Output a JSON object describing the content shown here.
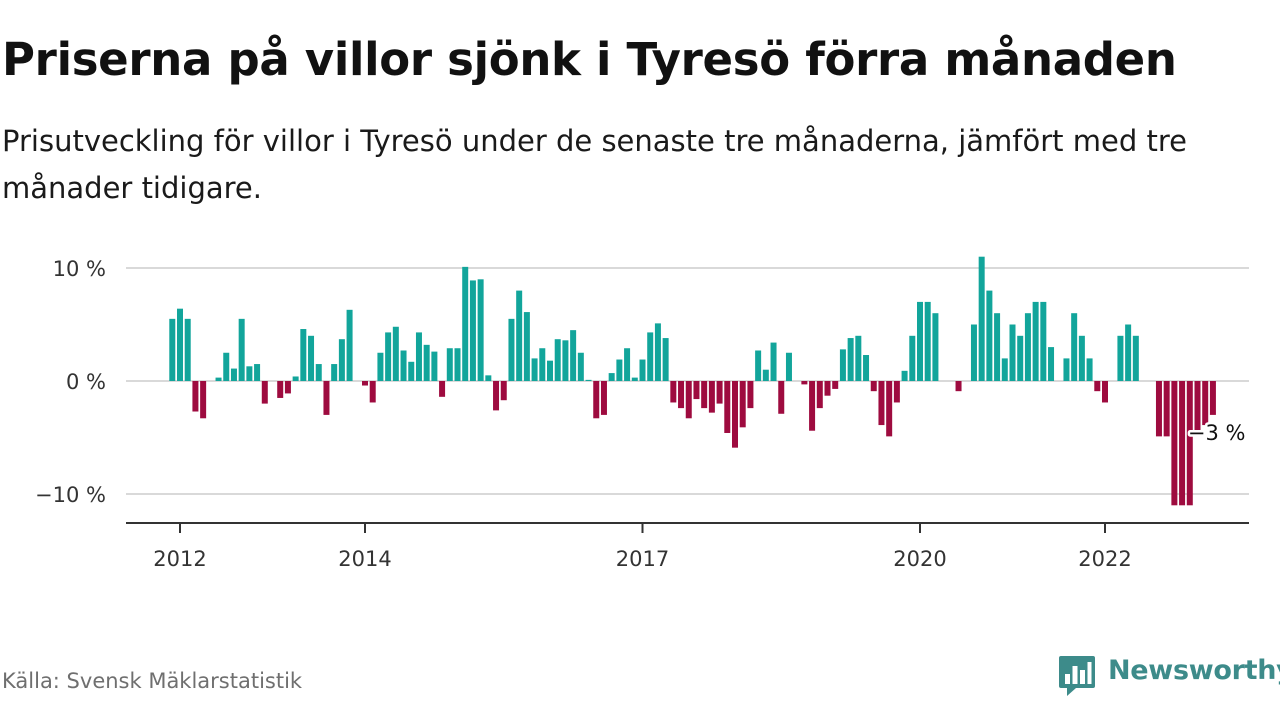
{
  "title": "Priserna på villor sjönk i Tyresö förra månaden",
  "subtitle": "Prisutveckling för villor i Tyresö under de senaste tre månaderna, jämfört med tre månader tidigare.",
  "source": "Källa: Svensk Mäklarstatistik",
  "logo": {
    "text": "Newsworthy",
    "icon": "bar-chart-speech-bubble-icon"
  },
  "colors": {
    "positive": "#12a59b",
    "negative": "#9e0b3f",
    "grid": "#d9d9d9",
    "axis": "#333333",
    "logo": "#3d8b8a"
  },
  "chart_data": {
    "type": "bar",
    "ylim": [
      -12.5,
      12.5
    ],
    "xlim": [
      2011.25,
      2023.55
    ],
    "yticks": [
      {
        "value": 10,
        "label": "10 %"
      },
      {
        "value": 0,
        "label": "0 %"
      },
      {
        "value": -10,
        "label": "−10 %"
      }
    ],
    "xticks": [
      {
        "value": 2012,
        "label": "2012"
      },
      {
        "value": 2014,
        "label": "2014"
      },
      {
        "value": 2017,
        "label": "2017"
      },
      {
        "value": 2020,
        "label": "2020"
      },
      {
        "value": 2022,
        "label": "2022"
      }
    ],
    "start": {
      "year": 2011,
      "month": 12
    },
    "grid": true,
    "annotation": {
      "label": "−3 %",
      "index": 135
    },
    "values": [
      5.5,
      6.4,
      5.5,
      -2.7,
      -3.3,
      0,
      0.3,
      2.5,
      1.1,
      5.5,
      1.3,
      1.5,
      -2.0,
      0,
      -1.5,
      -1.1,
      0.4,
      4.6,
      4.0,
      1.5,
      -3.0,
      1.5,
      3.7,
      6.3,
      0,
      -0.4,
      -1.9,
      2.5,
      4.3,
      4.8,
      2.7,
      1.7,
      4.3,
      3.2,
      2.6,
      -1.4,
      2.9,
      2.9,
      10.1,
      8.9,
      9.0,
      0.5,
      -2.6,
      -1.7,
      5.5,
      8.0,
      6.1,
      2.0,
      2.9,
      1.8,
      3.7,
      3.6,
      4.5,
      2.5,
      0.1,
      -3.3,
      -3.0,
      0.7,
      1.9,
      2.9,
      0.3,
      1.9,
      4.3,
      5.1,
      3.8,
      -1.9,
      -2.4,
      -3.3,
      -1.6,
      -2.4,
      -2.8,
      -2.0,
      -4.6,
      -5.9,
      -4.1,
      -2.4,
      2.7,
      1.0,
      3.4,
      -2.9,
      2.5,
      0,
      -0.3,
      -4.4,
      -2.4,
      -1.3,
      -0.7,
      2.8,
      3.8,
      4.0,
      2.3,
      -0.9,
      -3.9,
      -4.9,
      -1.9,
      0.9,
      4.0,
      7.0,
      7.0,
      6.0,
      0,
      0,
      -0.9,
      0,
      5.0,
      11.0,
      8.0,
      6.0,
      2.0,
      5.0,
      4.0,
      6.0,
      7.0,
      7.0,
      3.0,
      0,
      2.0,
      6.0,
      4.0,
      2.0,
      -0.9,
      -1.9,
      0,
      4.0,
      5.0,
      4.0,
      0,
      0,
      -4.9,
      -4.9,
      -11.0,
      -11.0,
      -11.0,
      -4.9,
      -3.9,
      -3.0
    ]
  }
}
